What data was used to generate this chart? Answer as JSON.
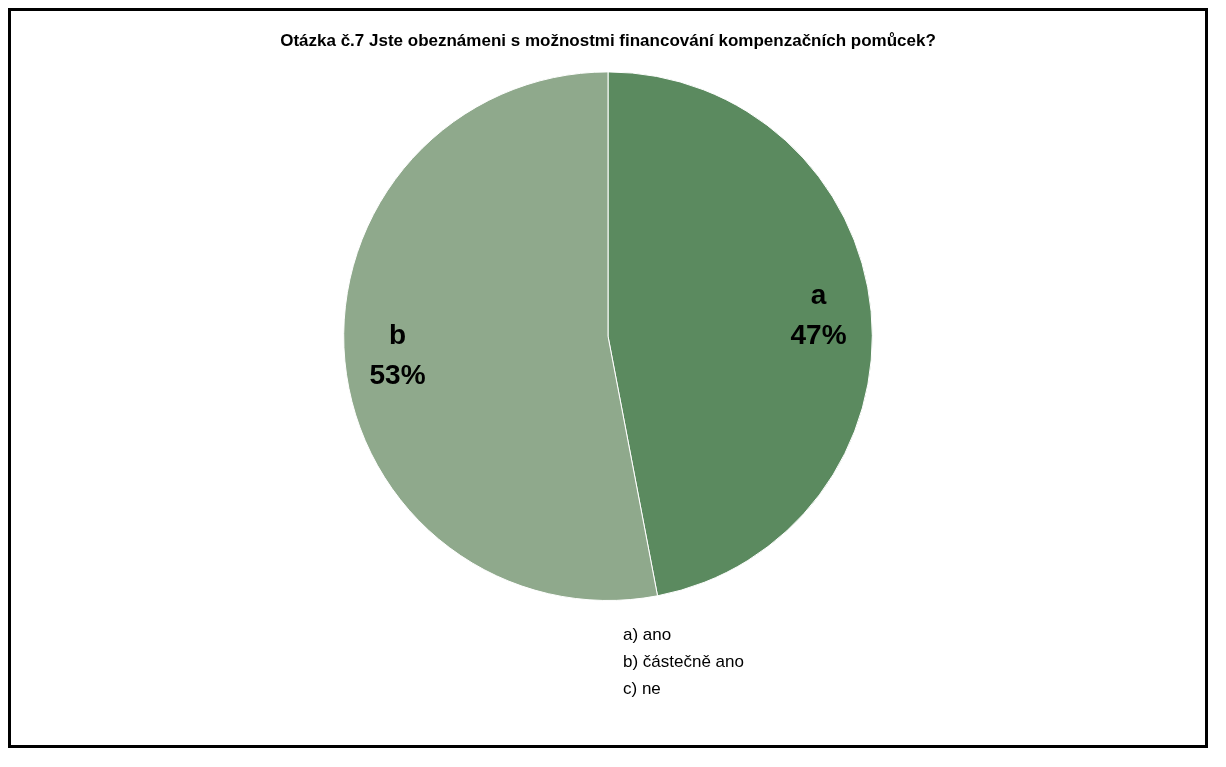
{
  "chart_data": {
    "type": "pie",
    "title": "Otázka č.7 Jste obeznámeni s možnostmi financování kompenzačních pomůcek?",
    "categories": [
      "a",
      "b"
    ],
    "values": [
      47,
      53
    ],
    "value_labels": [
      "47%",
      "53%"
    ],
    "colors": [
      "#5b8a5f",
      "#8fa98c"
    ],
    "legend": false,
    "annotations": [
      "a) ano",
      "b) částečně ano",
      "c) ne"
    ]
  }
}
